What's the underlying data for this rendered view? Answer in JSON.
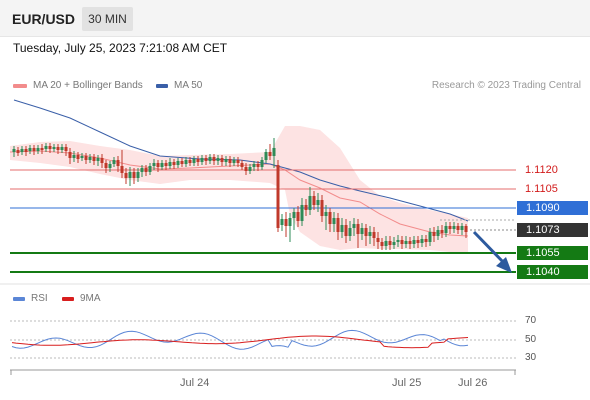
{
  "header": {
    "symbol": "EUR/USD",
    "interval": "30 MIN"
  },
  "timestamp": "Tuesday, July 25, 2023 7:21:08 AM CET",
  "legend": {
    "ma20": {
      "label": "MA 20 + Bollinger Bands",
      "color": "#f28c8c"
    },
    "ma50": {
      "label": "MA 50",
      "color": "#3a5fa8"
    },
    "research": "Research © 2023 Trading Central"
  },
  "price_levels": [
    {
      "value": "1.1120",
      "style": "red-line"
    },
    {
      "value": "1.1105",
      "style": "red-line"
    },
    {
      "value": "1.1090",
      "style": "blue-tag"
    },
    {
      "value": "1.1073",
      "style": "dark-tag"
    },
    {
      "value": "1.1055",
      "style": "green-tag"
    },
    {
      "value": "1.1040",
      "style": "green-tag"
    }
  ],
  "colors": {
    "up": "#2e8b57",
    "down": "#c0392b",
    "resistance": "#e46e6e",
    "pivot": "#2f6fd6",
    "support": "#147a14",
    "current": "#333333",
    "arrow": "#2d5a9e",
    "rsi": "#5b86d6",
    "rsi_ma": "#d81e1e"
  },
  "x_axis": {
    "ticks": [
      "Jul 24",
      "Jul 25",
      "Jul 26"
    ]
  },
  "rsi": {
    "legend": {
      "rsi": "RSI",
      "ma": "9MA"
    },
    "levels": [
      "70",
      "50",
      "30"
    ]
  }
}
